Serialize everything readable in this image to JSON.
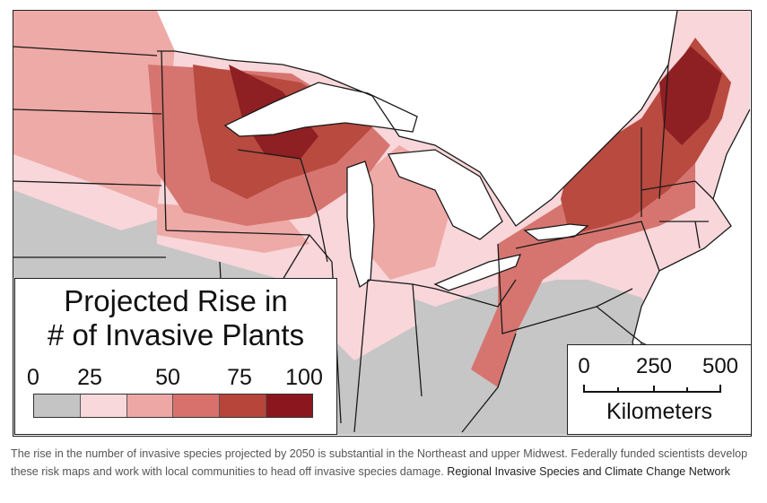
{
  "legend": {
    "title_line1": "Projected Rise in",
    "title_line2": "# of Invasive Plants",
    "ticks": [
      "0",
      "25",
      "50",
      "75",
      "100"
    ],
    "colors": [
      "#c4c4c4",
      "#f9d8db",
      "#eda7a4",
      "#d8716c",
      "#b8453a",
      "#8c161d"
    ]
  },
  "scale_bar": {
    "ticks": [
      "0",
      "250",
      "500"
    ],
    "unit": "Kilometers"
  },
  "caption": {
    "text": "The rise in the number of invasive species projected by 2050 is substantial in the Northeast and upper Midwest. Federally funded scientists develop these risk maps and work with local communities to head off invasive species damage. ",
    "source": "Regional Invasive Species and Climate Change Network"
  },
  "map_colors": {
    "water": "#ffffff",
    "gray": "#c6c6c6",
    "pale": "#f8d6d9",
    "light": "#eeaaa7",
    "medium": "#d67570",
    "dark": "#b84a3f",
    "darkest": "#8e1f23",
    "border": "#1a1a1a"
  }
}
